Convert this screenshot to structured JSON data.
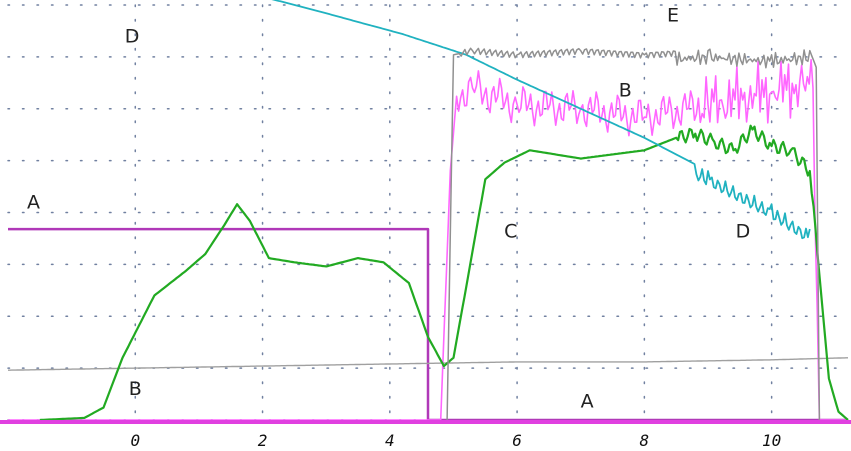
{
  "chart_data": {
    "type": "line",
    "title": "",
    "xlabel": "",
    "ylabel": "",
    "xlim": [
      -2.0,
      11.2
    ],
    "ylim": [
      0,
      100
    ],
    "grid": true,
    "x_ticks": [
      0,
      2,
      4,
      6,
      8,
      10
    ],
    "x_tick_labels": [
      "0",
      "2",
      "4",
      "6",
      "8",
      "10"
    ],
    "colors": {
      "A": "#b038b8",
      "B": "#ff66ff",
      "B_low": "#a0a0a0",
      "C": "#22aa22",
      "D": "#20b2c0",
      "E": "#909090",
      "grid": "#7080a0",
      "baseline": "#e040e0"
    },
    "series": [
      {
        "id": "A",
        "x": [
          -2.0,
          4.6,
          4.6,
          11.2
        ],
        "y": [
          46,
          46,
          0,
          0
        ]
      },
      {
        "id": "B",
        "x": [
          -2.0,
          4.8,
          4.95,
          5.05,
          5.3,
          6.0,
          7.0,
          8.0,
          9.0,
          10.0,
          10.5,
          10.65,
          10.75,
          11.2
        ],
        "y": [
          0,
          0,
          60,
          78,
          80,
          76,
          75,
          73,
          76,
          79,
          81,
          80,
          0,
          0
        ]
      },
      {
        "id": "B_low",
        "x": [
          -2.0,
          0,
          2,
          4,
          6,
          8,
          10,
          11.2
        ],
        "y": [
          12,
          12.5,
          13,
          13.5,
          14,
          14,
          14.5,
          15
        ]
      },
      {
        "id": "C",
        "x": [
          -1.5,
          -0.8,
          -0.5,
          -0.2,
          0.3,
          0.8,
          1.1,
          1.4,
          1.6,
          1.8,
          2.1,
          2.5,
          3.0,
          3.5,
          3.9,
          4.3,
          4.6,
          4.85,
          5.0,
          5.2,
          5.5,
          5.8,
          6.2,
          7.0,
          8.0,
          8.5,
          8.8,
          9.1,
          9.4,
          9.7,
          10.0,
          10.3,
          10.6,
          10.75,
          10.9,
          11.05,
          11.2
        ],
        "y": [
          0,
          0.5,
          3,
          15,
          30,
          36,
          40,
          47,
          52,
          48,
          39,
          38,
          37,
          39,
          38,
          33,
          20,
          13,
          15,
          32,
          58,
          62,
          65,
          63,
          65,
          68,
          69,
          67,
          65,
          70,
          66,
          65,
          60,
          35,
          10,
          2,
          0
        ]
      },
      {
        "id": "D",
        "x": [
          1.5,
          3.0,
          4.2,
          5.2,
          6.0,
          7.0,
          8.0,
          9.0,
          10.0,
          10.6
        ],
        "y": [
          104,
          98,
          93,
          88,
          82,
          75,
          68,
          60,
          52,
          46
        ]
      },
      {
        "id": "E",
        "x": [
          4.9,
          5.0,
          5.3,
          6.0,
          7.0,
          8.0,
          9.0,
          10.0,
          10.6,
          10.7,
          10.75
        ],
        "y": [
          0,
          88,
          89,
          88,
          89,
          88,
          89,
          88,
          89,
          85,
          0
        ]
      }
    ],
    "annotations": [
      {
        "text": "D",
        "x": -0.05,
        "y": 91
      },
      {
        "text": "E",
        "x": 8.45,
        "y": 96
      },
      {
        "text": "B",
        "x": 7.7,
        "y": 78
      },
      {
        "text": "A",
        "x": -1.6,
        "y": 51
      },
      {
        "text": "C",
        "x": 5.9,
        "y": 44
      },
      {
        "text": "D",
        "x": 9.55,
        "y": 44
      },
      {
        "text": "B",
        "x": 0.0,
        "y": 6
      },
      {
        "text": "A",
        "x": 7.1,
        "y": 3
      }
    ]
  }
}
